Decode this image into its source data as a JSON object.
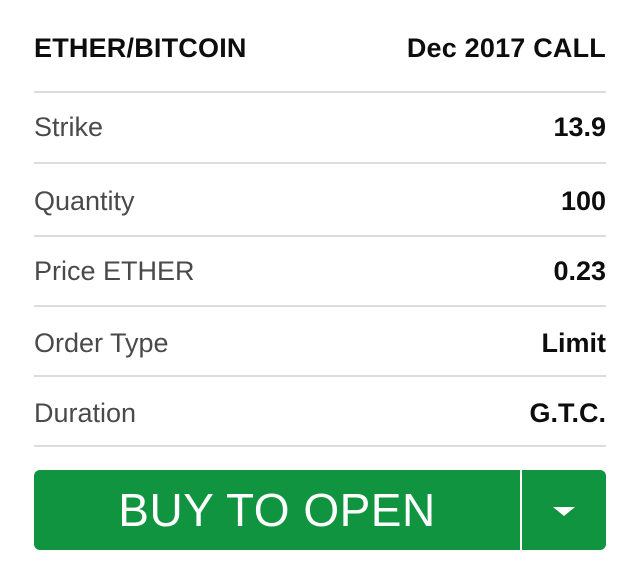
{
  "header": {
    "symbol": "ETHER/BITCOIN",
    "contract": "Dec 2017 CALL"
  },
  "fields": {
    "strike": {
      "label": "Strike",
      "value": "13.9"
    },
    "quantity": {
      "label": "Quantity",
      "value": "100"
    },
    "price": {
      "label": "Price ETHER",
      "value": "0.23"
    },
    "order_type": {
      "label": "Order Type",
      "value": "Limit"
    },
    "duration": {
      "label": "Duration",
      "value": "G.T.C."
    }
  },
  "action": {
    "primary_label": "BUY TO OPEN",
    "menu_icon": "caret-down-icon"
  },
  "colors": {
    "accent": "#109440"
  }
}
